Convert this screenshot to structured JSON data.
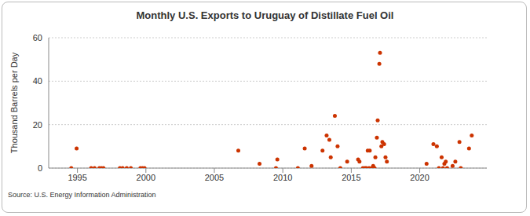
{
  "chart_data": {
    "type": "scatter",
    "title": "Monthly U.S. Exports to Uruguay of Distillate Fuel Oil",
    "ylabel": "Thousand Barrels per Day",
    "source": "Source: U.S. Energy Information Administration",
    "x": [
      1994.55,
      1994.94,
      1996.0,
      1996.25,
      1996.6,
      1996.75,
      1996.9,
      1998.1,
      1998.3,
      1998.6,
      1998.9,
      1999.6,
      1999.75,
      1999.9,
      2006.75,
      2008.3,
      2009.5,
      2009.6,
      2011.1,
      2011.6,
      2012.1,
      2012.9,
      2013.2,
      2013.4,
      2013.5,
      2013.8,
      2014.0,
      2014.2,
      2014.7,
      2015.5,
      2015.6,
      2015.85,
      2016.0,
      2016.1,
      2016.3,
      2016.2,
      2016.35,
      2016.5,
      2016.6,
      2016.7,
      2016.76,
      2016.87,
      2016.93,
      2017.05,
      2017.1,
      2017.2,
      2017.27,
      2017.4,
      2017.5,
      2017.6,
      2020.5,
      2021.0,
      2021.25,
      2021.4,
      2021.6,
      2021.7,
      2021.8,
      2021.9,
      2022.0,
      2022.4,
      2022.6,
      2022.9,
      2023.0,
      2023.6,
      2023.8
    ],
    "values": [
      0,
      9,
      0,
      0,
      0,
      0,
      0,
      0,
      0,
      0,
      0,
      0,
      0,
      0,
      8,
      2,
      0,
      4,
      0,
      9,
      1,
      8,
      15,
      13,
      5,
      24,
      10,
      0,
      3,
      4,
      3,
      0,
      0,
      0,
      0,
      8,
      8,
      0,
      1,
      0,
      5,
      14,
      22,
      48,
      53,
      10,
      12,
      11,
      5,
      3,
      2,
      11,
      10,
      0,
      5,
      0,
      2,
      3,
      0,
      1,
      3,
      12,
      0,
      9,
      15
    ],
    "color": "#cc3300",
    "marker": "circle",
    "xlim": [
      1992.9,
      2024.9
    ],
    "xticks": [
      1995,
      2000,
      2005,
      2010,
      2015,
      2020
    ],
    "ylim": [
      0,
      60
    ],
    "yticks": [
      0,
      20,
      40,
      60
    ],
    "grid": true
  }
}
